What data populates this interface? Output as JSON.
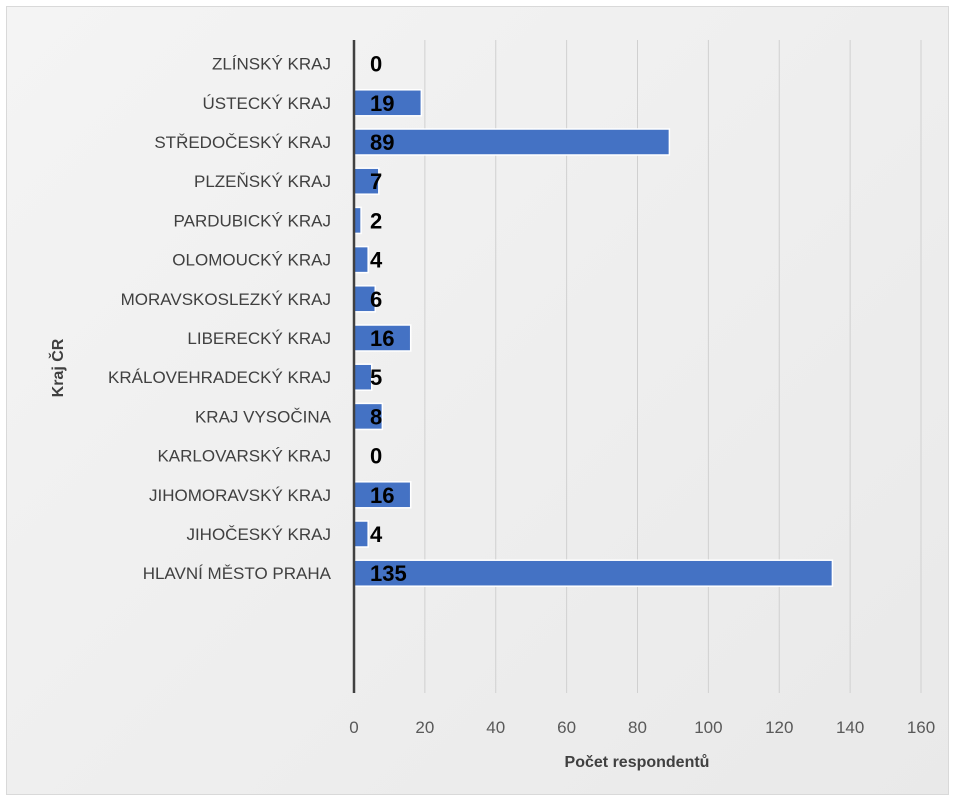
{
  "chart_data": {
    "type": "bar",
    "orientation": "horizontal",
    "categories": [
      "ZLÍNSKÝ KRAJ",
      "ÚSTECKÝ KRAJ",
      "STŘEDOČESKÝ KRAJ",
      "PLZEŇSKÝ KRAJ",
      "PARDUBICKÝ KRAJ",
      "OLOMOUCKÝ KRAJ",
      "MORAVSKOSLEZKÝ KRAJ",
      "LIBERECKÝ KRAJ",
      "KRÁLOVEHRADECKÝ KRAJ",
      "KRAJ VYSOČINA",
      "KARLOVARSKÝ KRAJ",
      "JIHOMORAVSKÝ KRAJ",
      "JIHOČESKÝ KRAJ",
      "HLAVNÍ MĚSTO PRAHA"
    ],
    "values": [
      0,
      19,
      89,
      7,
      2,
      4,
      6,
      16,
      5,
      8,
      0,
      16,
      4,
      135
    ],
    "xlabel": "Počet respondentů",
    "ylabel": "Kraj ČR",
    "xlim": [
      0,
      160
    ],
    "xticks": [
      0,
      20,
      40,
      60,
      80,
      100,
      120,
      140,
      160
    ],
    "grid": true,
    "legend": "none",
    "bar_color": "#4472c4",
    "data_labels": true
  }
}
